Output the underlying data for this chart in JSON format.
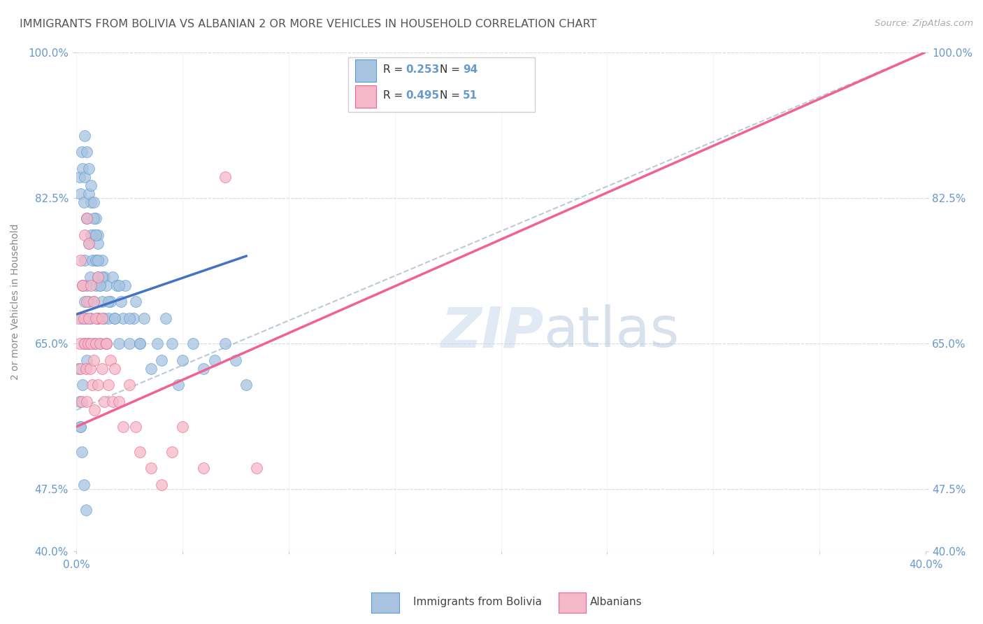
{
  "title": "IMMIGRANTS FROM BOLIVIA VS ALBANIAN 2 OR MORE VEHICLES IN HOUSEHOLD CORRELATION CHART",
  "source": "Source: ZipAtlas.com",
  "ylabel": "2 or more Vehicles in Household",
  "watermark_ZIP": "ZIP",
  "watermark_atlas": "atlas",
  "blue_label": "Immigrants from Bolivia",
  "pink_label": "Albanians",
  "blue_R": "0.253",
  "blue_N": "94",
  "pink_R": "0.495",
  "pink_N": "51",
  "xlim": [
    0.0,
    40.0
  ],
  "ylim": [
    40.0,
    100.0
  ],
  "xtick_positions": [
    0.0,
    5.0,
    10.0,
    15.0,
    20.0,
    25.0,
    30.0,
    35.0,
    40.0
  ],
  "ytick_positions": [
    40.0,
    47.5,
    65.0,
    82.5,
    100.0
  ],
  "blue_color": "#a8c4e0",
  "blue_edge_color": "#5b9bd5",
  "pink_color": "#f4b8c8",
  "pink_edge_color": "#f06292",
  "blue_line_color": "#4472c4",
  "pink_line_color": "#f06292",
  "ref_line_color": "#a0b4c8",
  "grid_color": "#c8d4e0",
  "title_color": "#555555",
  "tick_color": "#6699cc",
  "ylabel_color": "#888888",
  "source_color": "#aaaaaa",
  "blue_scatter_x": [
    0.1,
    0.15,
    0.2,
    0.25,
    0.3,
    0.3,
    0.35,
    0.4,
    0.4,
    0.45,
    0.5,
    0.5,
    0.5,
    0.55,
    0.6,
    0.6,
    0.65,
    0.7,
    0.7,
    0.75,
    0.8,
    0.8,
    0.85,
    0.9,
    0.9,
    0.95,
    1.0,
    1.0,
    1.0,
    1.1,
    1.1,
    1.2,
    1.2,
    1.3,
    1.3,
    1.4,
    1.4,
    1.5,
    1.6,
    1.7,
    1.8,
    1.9,
    2.0,
    2.1,
    2.2,
    2.3,
    2.5,
    2.7,
    2.8,
    3.0,
    3.2,
    3.5,
    3.8,
    4.0,
    4.2,
    4.5,
    4.8,
    5.0,
    5.5,
    6.0,
    6.5,
    7.0,
    7.5,
    8.0,
    0.15,
    0.2,
    0.25,
    0.3,
    0.35,
    0.4,
    0.5,
    0.6,
    0.7,
    0.8,
    0.9,
    1.0,
    1.2,
    1.5,
    1.8,
    2.0,
    2.5,
    3.0,
    0.4,
    0.5,
    0.6,
    0.7,
    0.8,
    0.9,
    1.0,
    1.1,
    0.2,
    0.25,
    0.35,
    0.45
  ],
  "blue_scatter_y": [
    62.0,
    58.0,
    55.0,
    68.0,
    72.0,
    60.0,
    65.0,
    70.0,
    75.0,
    68.0,
    63.0,
    72.0,
    80.0,
    65.0,
    70.0,
    77.0,
    73.0,
    68.0,
    82.0,
    75.0,
    70.0,
    78.0,
    65.0,
    72.0,
    80.0,
    75.0,
    68.0,
    73.0,
    78.0,
    72.0,
    65.0,
    70.0,
    75.0,
    68.0,
    73.0,
    65.0,
    72.0,
    68.0,
    70.0,
    73.0,
    68.0,
    72.0,
    65.0,
    70.0,
    68.0,
    72.0,
    65.0,
    68.0,
    70.0,
    65.0,
    68.0,
    62.0,
    65.0,
    63.0,
    68.0,
    65.0,
    60.0,
    63.0,
    65.0,
    62.0,
    63.0,
    65.0,
    63.0,
    60.0,
    85.0,
    83.0,
    88.0,
    86.0,
    82.0,
    85.0,
    80.0,
    83.0,
    78.0,
    80.0,
    75.0,
    77.0,
    73.0,
    70.0,
    68.0,
    72.0,
    68.0,
    65.0,
    90.0,
    88.0,
    86.0,
    84.0,
    82.0,
    78.0,
    75.0,
    72.0,
    55.0,
    52.0,
    48.0,
    45.0
  ],
  "pink_scatter_x": [
    0.1,
    0.15,
    0.2,
    0.25,
    0.3,
    0.35,
    0.4,
    0.45,
    0.5,
    0.5,
    0.55,
    0.6,
    0.65,
    0.7,
    0.75,
    0.8,
    0.85,
    0.9,
    1.0,
    1.0,
    1.1,
    1.2,
    1.3,
    1.4,
    1.5,
    1.6,
    1.7,
    1.8,
    2.0,
    2.2,
    2.5,
    2.8,
    3.0,
    3.5,
    4.0,
    4.5,
    5.0,
    6.0,
    7.0,
    8.5,
    0.2,
    0.3,
    0.4,
    0.5,
    0.6,
    0.7,
    0.8,
    0.9,
    1.0,
    1.2,
    1.4
  ],
  "pink_scatter_y": [
    68.0,
    65.0,
    62.0,
    58.0,
    72.0,
    68.0,
    65.0,
    62.0,
    70.0,
    58.0,
    65.0,
    68.0,
    62.0,
    65.0,
    60.0,
    63.0,
    57.0,
    65.0,
    60.0,
    68.0,
    65.0,
    62.0,
    58.0,
    65.0,
    60.0,
    63.0,
    58.0,
    62.0,
    58.0,
    55.0,
    60.0,
    55.0,
    52.0,
    50.0,
    48.0,
    52.0,
    55.0,
    50.0,
    85.0,
    50.0,
    75.0,
    72.0,
    78.0,
    80.0,
    77.0,
    72.0,
    70.0,
    68.0,
    73.0,
    68.0,
    65.0
  ],
  "blue_trend_x0": 0.0,
  "blue_trend_y0": 68.5,
  "blue_trend_x1": 8.0,
  "blue_trend_y1": 75.5,
  "pink_trend_x0": 0.0,
  "pink_trend_y0": 55.0,
  "pink_trend_x1": 40.0,
  "pink_trend_y1": 100.0,
  "ref_line_x0": 0.0,
  "ref_line_y0": 55.0,
  "ref_line_x1": 40.0,
  "ref_line_y1": 100.0
}
